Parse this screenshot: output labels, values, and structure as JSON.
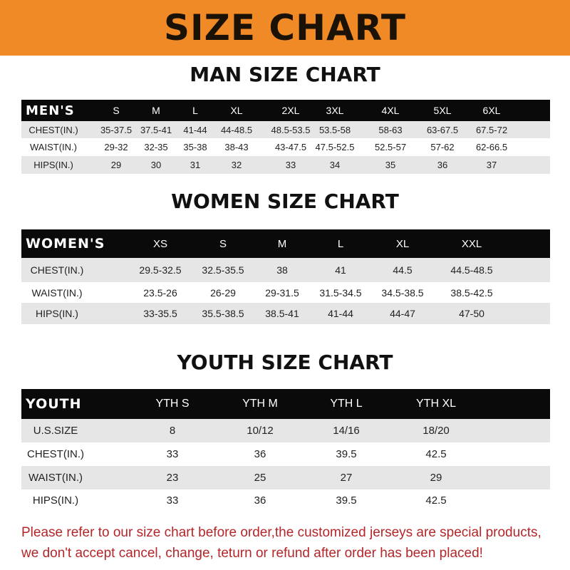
{
  "banner": "SIZE CHART",
  "men": {
    "title": "MAN SIZE CHART",
    "header": [
      "MEN'S",
      "S",
      "M",
      "L",
      "XL",
      "2XL",
      "3XL",
      "4XL",
      "5XL",
      "6XL"
    ],
    "rows": [
      [
        "CHEST(IN.)",
        "35-37.5",
        "37.5-41",
        "41-44",
        "44-48.5",
        "48.5-53.5",
        "53.5-58",
        "58-63",
        "63-67.5",
        "67.5-72"
      ],
      [
        "WAIST(IN.)",
        "29-32",
        "32-35",
        "35-38",
        "38-43",
        "43-47.5",
        "47.5-52.5",
        "52.5-57",
        "57-62",
        "62-66.5"
      ],
      [
        "HIPS(IN.)",
        "29",
        "30",
        "31",
        "32",
        "33",
        "34",
        "35",
        "36",
        "37"
      ]
    ]
  },
  "women": {
    "title": "WOMEN SIZE CHART",
    "header": [
      "WOMEN'S",
      "XS",
      "S",
      "M",
      "L",
      "XL",
      "XXL"
    ],
    "rows": [
      [
        "CHEST(IN.)",
        "29.5-32.5",
        "32.5-35.5",
        "38",
        "41",
        "44.5",
        "44.5-48.5"
      ],
      [
        "WAIST(IN.)",
        "23.5-26",
        "26-29",
        "29-31.5",
        "31.5-34.5",
        "34.5-38.5",
        "38.5-42.5"
      ],
      [
        "HIPS(IN.)",
        "33-35.5",
        "35.5-38.5",
        "38.5-41",
        "41-44",
        "44-47",
        "47-50"
      ]
    ]
  },
  "youth": {
    "title": "YOUTH SIZE CHART",
    "header": [
      "YOUTH",
      "YTH S",
      "YTH M",
      "YTH L",
      "YTH XL"
    ],
    "rows": [
      [
        "U.S.SIZE",
        "8",
        "10/12",
        "14/16",
        "18/20"
      ],
      [
        "CHEST(IN.)",
        "33",
        "36",
        "39.5",
        "42.5"
      ],
      [
        "WAIST(IN.)",
        "23",
        "25",
        "27",
        "29"
      ],
      [
        "HIPS(IN.)",
        "33",
        "36",
        "39.5",
        "42.5"
      ]
    ]
  },
  "footer": {
    "line1": "Please refer to our size chart before order,the customized jerseys are special products,",
    "line2": "we don't accept cancel, change, teturn or refund after order has been placed!"
  },
  "colors": {
    "banner": "#ef8a26",
    "header_row": "#0a0a0a",
    "stripe": "#e6e6e6",
    "notice": "#b3262a"
  }
}
